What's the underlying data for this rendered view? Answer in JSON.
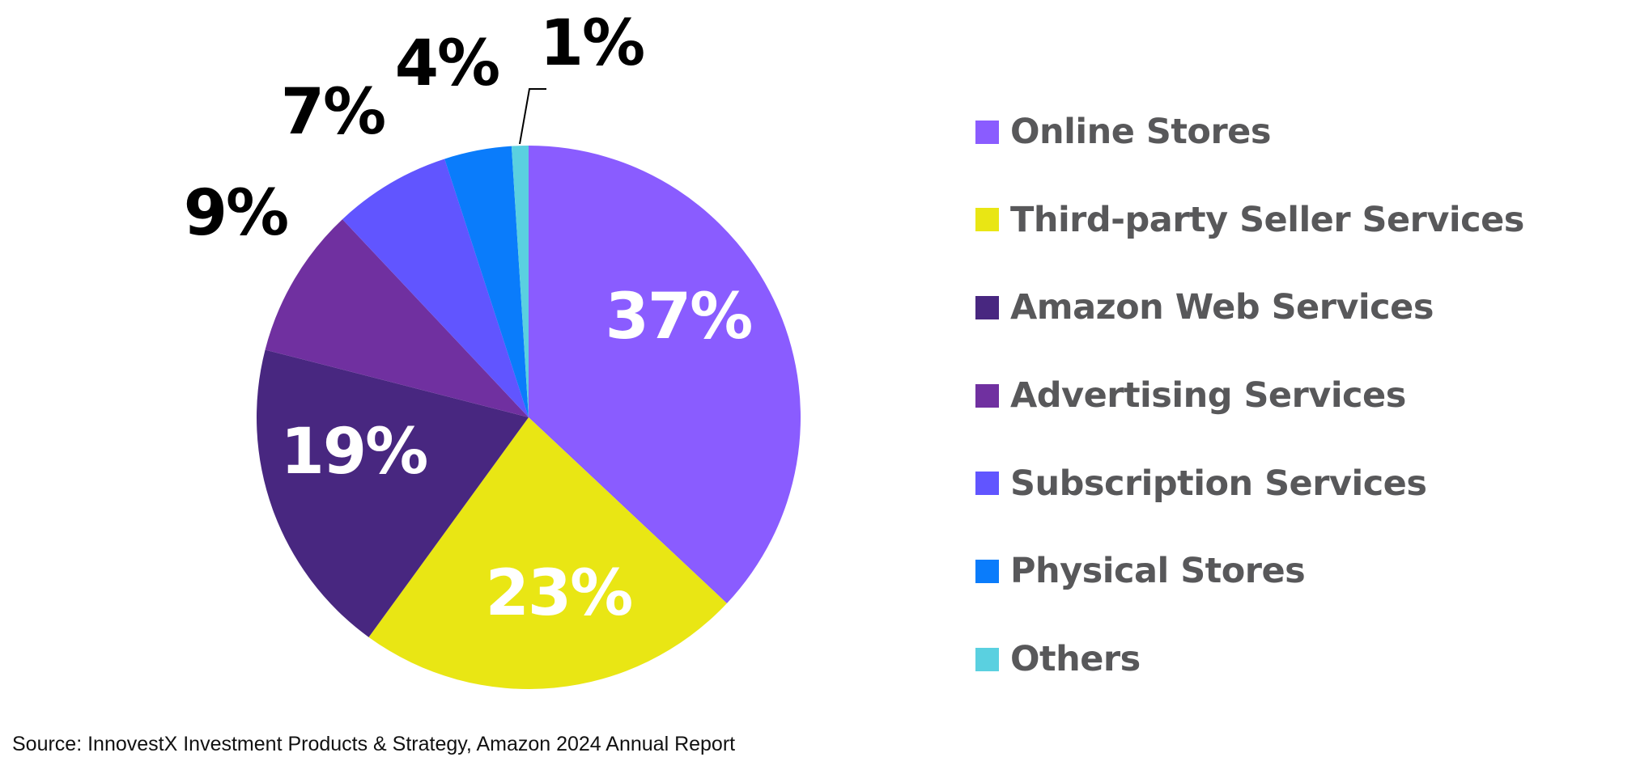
{
  "chart_data": {
    "type": "pie",
    "title": "",
    "categories": [
      "Online Stores",
      "Third-party Seller Services",
      "Amazon Web Services",
      "Advertising Services",
      "Subscription Services",
      "Physical Stores",
      "Others"
    ],
    "values": [
      37,
      23,
      19,
      9,
      7,
      4,
      1
    ],
    "value_labels": [
      "37%",
      "23%",
      "19%",
      "9%",
      "7%",
      "4%",
      "1%"
    ],
    "colors": [
      "#8a5cff",
      "#e9e614",
      "#482780",
      "#7030a0",
      "#6155ff",
      "#0a7cfb",
      "#5ad0e0"
    ],
    "label_colors": [
      "#ffffff",
      "#ffffff",
      "#ffffff",
      "#000000",
      "#000000",
      "#000000",
      "#000000"
    ],
    "legend_position": "right",
    "source": "Source: InnovestX Investment Products & Strategy, Amazon 2024 Annual Report"
  }
}
